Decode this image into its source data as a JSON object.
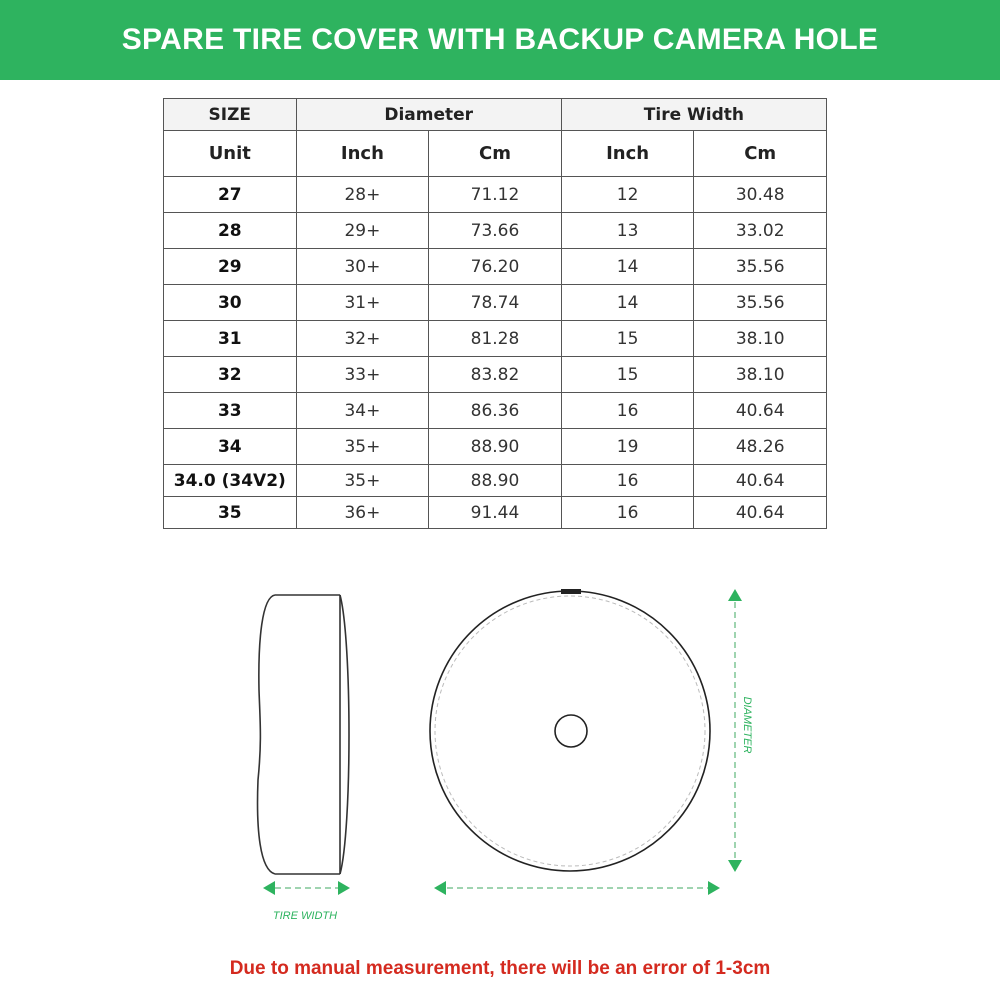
{
  "title": "SPARE TIRE COVER WITH BACKUP CAMERA HOLE",
  "table": {
    "group_headers": [
      "SIZE",
      "Diameter",
      "Tire Width"
    ],
    "sub_headers": [
      "Unit",
      "Inch",
      "Cm",
      "Inch",
      "Cm"
    ],
    "rows": [
      [
        "27",
        "28+",
        "71.12",
        "12",
        "30.48"
      ],
      [
        "28",
        "29+",
        "73.66",
        "13",
        "33.02"
      ],
      [
        "29",
        "30+",
        "76.20",
        "14",
        "35.56"
      ],
      [
        "30",
        "31+",
        "78.74",
        "14",
        "35.56"
      ],
      [
        "31",
        "32+",
        "81.28",
        "15",
        "38.10"
      ],
      [
        "32",
        "33+",
        "83.82",
        "15",
        "38.10"
      ],
      [
        "33",
        "34+",
        "86.36",
        "16",
        "40.64"
      ],
      [
        "34",
        "35+",
        "88.90",
        "19",
        "48.26"
      ],
      [
        "34.0 (34V2)",
        "35+",
        "88.90",
        "16",
        "40.64"
      ],
      [
        "35",
        "36+",
        "91.44",
        "16",
        "40.64"
      ]
    ]
  },
  "diagram": {
    "tire_width_label": "TIRE WIDTH",
    "diameter_label": "DIAMETER",
    "accent_color": "#2eb35f"
  },
  "footer_note": "Due to manual measurement, there will be an error of 1-3cm",
  "colors": {
    "banner": "#2eb35f",
    "footer": "#d42a1f"
  }
}
